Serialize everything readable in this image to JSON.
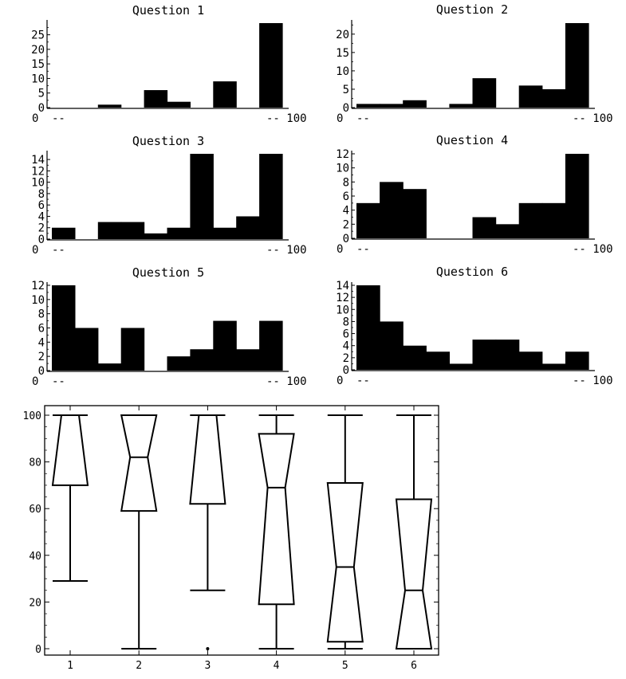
{
  "chart_data": [
    {
      "type": "bar",
      "title": "Question 1",
      "categories": [
        "0-10",
        "10-20",
        "20-30",
        "30-40",
        "40-50",
        "50-60",
        "60-70",
        "70-80",
        "80-90",
        "90-100"
      ],
      "values": [
        0,
        0,
        1,
        0,
        6,
        2,
        0,
        9,
        0,
        29
      ],
      "yticks": [
        0,
        5,
        10,
        15,
        20,
        25
      ],
      "ylim": [
        0,
        29
      ],
      "x_axis_labels": [
        "0",
        "--",
        "-- 100"
      ]
    },
    {
      "type": "bar",
      "title": "Question 2",
      "categories": [
        "0-10",
        "10-20",
        "20-30",
        "30-40",
        "40-50",
        "50-60",
        "60-70",
        "70-80",
        "80-90",
        "90-100"
      ],
      "values": [
        1,
        1,
        2,
        0,
        1,
        8,
        0,
        6,
        5,
        23
      ],
      "yticks": [
        0,
        5,
        10,
        15,
        20
      ],
      "ylim": [
        0,
        23
      ],
      "x_axis_labels": [
        "0",
        "--",
        "-- 100"
      ]
    },
    {
      "type": "bar",
      "title": "Question 3",
      "categories": [
        "0-10",
        "10-20",
        "20-30",
        "30-40",
        "40-50",
        "50-60",
        "60-70",
        "70-80",
        "80-90",
        "90-100"
      ],
      "values": [
        2,
        0,
        3,
        3,
        1,
        2,
        15,
        2,
        4,
        15
      ],
      "yticks": [
        0,
        2,
        4,
        6,
        8,
        10,
        12,
        14
      ],
      "ylim": [
        0,
        15
      ],
      "x_axis_labels": [
        "0",
        "--",
        "-- 100"
      ]
    },
    {
      "type": "bar",
      "title": "Question 4",
      "categories": [
        "0-10",
        "10-20",
        "20-30",
        "30-40",
        "40-50",
        "50-60",
        "60-70",
        "70-80",
        "80-90",
        "90-100"
      ],
      "values": [
        5,
        8,
        7,
        0,
        0,
        3,
        2,
        5,
        5,
        12
      ],
      "yticks": [
        0,
        2,
        4,
        6,
        8,
        10,
        12
      ],
      "ylim": [
        0,
        12
      ],
      "x_axis_labels": [
        "0",
        "--",
        "-- 100"
      ]
    },
    {
      "type": "bar",
      "title": "Question 5",
      "categories": [
        "0-10",
        "10-20",
        "20-30",
        "30-40",
        "40-50",
        "50-60",
        "60-70",
        "70-80",
        "80-90",
        "90-100"
      ],
      "values": [
        12,
        6,
        1,
        6,
        0,
        2,
        3,
        7,
        3,
        7
      ],
      "yticks": [
        0,
        2,
        4,
        6,
        8,
        10,
        12
      ],
      "ylim": [
        0,
        12
      ],
      "x_axis_labels": [
        "0",
        "--",
        "-- 100"
      ]
    },
    {
      "type": "bar",
      "title": "Question 6",
      "categories": [
        "0-10",
        "10-20",
        "20-30",
        "30-40",
        "40-50",
        "50-60",
        "60-70",
        "70-80",
        "80-90",
        "90-100"
      ],
      "values": [
        14,
        8,
        4,
        3,
        1,
        5,
        5,
        3,
        1,
        3
      ],
      "yticks": [
        0,
        2,
        4,
        6,
        8,
        10,
        12,
        14
      ],
      "ylim": [
        0,
        14
      ],
      "x_axis_labels": [
        "0",
        "--",
        "-- 100"
      ]
    },
    {
      "type": "boxplot",
      "title": "",
      "categories": [
        "1",
        "2",
        "3",
        "4",
        "5",
        "6"
      ],
      "boxes": [
        {
          "label": "1",
          "min": 29,
          "q1": 70,
          "median": 100,
          "q3": 100,
          "max": 100,
          "outliers": []
        },
        {
          "label": "2",
          "min": 0,
          "q1": 59,
          "median": 82,
          "q3": 100,
          "max": 100,
          "outliers": []
        },
        {
          "label": "3",
          "min": 25,
          "q1": 62,
          "median": 100,
          "q3": 100,
          "max": 100,
          "outliers": [
            0
          ]
        },
        {
          "label": "4",
          "min": 0,
          "q1": 19,
          "median": 69,
          "q3": 92,
          "max": 100,
          "outliers": []
        },
        {
          "label": "5",
          "min": 0,
          "q1": 3,
          "median": 35,
          "q3": 71,
          "max": 100,
          "outliers": []
        },
        {
          "label": "6",
          "min": 0,
          "q1": 0,
          "median": 25,
          "q3": 64,
          "max": 100,
          "outliers": []
        }
      ],
      "yticks": [
        0,
        20,
        40,
        60,
        80,
        100
      ],
      "ylim": [
        0,
        100
      ]
    }
  ]
}
